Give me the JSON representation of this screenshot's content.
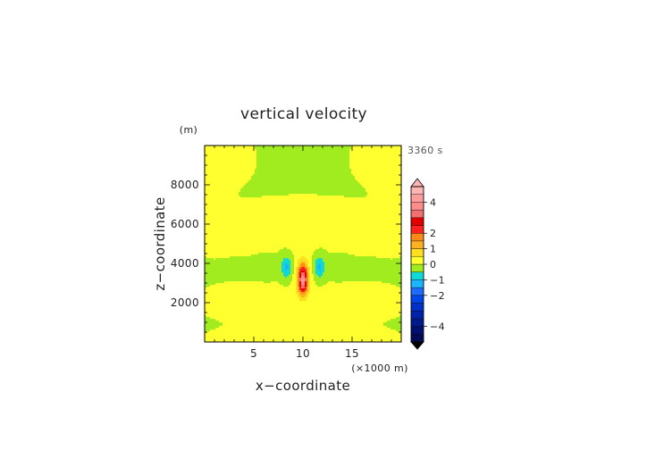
{
  "chart_data": {
    "type": "heatmap",
    "title": "vertical velocity",
    "xlabel": "x−coordinate",
    "ylabel": "z−coordinate",
    "x_unit_label": "(×1000 m)",
    "y_unit_label": "(m)",
    "time_label": "3360 s",
    "xlim": [
      0,
      20
    ],
    "ylim": [
      0,
      10000
    ],
    "x_ticks": [
      5,
      10,
      15
    ],
    "y_ticks": [
      2000,
      4000,
      6000,
      8000
    ],
    "x_tick_labels": [
      "5",
      "10",
      "15"
    ],
    "y_tick_labels": [
      "2000",
      "4000",
      "6000",
      "8000"
    ],
    "contour_levels": [
      -5,
      -4.5,
      -4,
      -3.5,
      -3,
      -2.5,
      -2,
      -1.5,
      -1,
      -0.5,
      0,
      0.5,
      1,
      1.5,
      2,
      2.5,
      3,
      3.5,
      4,
      4.5,
      5
    ],
    "level_colors": [
      "#000a55",
      "#001070",
      "#001a8c",
      "#0022a8",
      "#0030c8",
      "#0046e6",
      "#1e6cff",
      "#1ab4ff",
      "#10d8d8",
      "#a0ec1e",
      "#ffff30",
      "#ffde20",
      "#ffb020",
      "#ff8a18",
      "#ff2020",
      "#e00000",
      "#f27070",
      "#ff8c8c",
      "#ff9c9c",
      "#ffb4b4"
    ],
    "colorbar_labels": [
      {
        "value": 4,
        "text": "4"
      },
      {
        "value": 2,
        "text": "2"
      },
      {
        "value": 1,
        "text": "1"
      },
      {
        "value": 0,
        "text": "0"
      },
      {
        "value": -1,
        "text": "−1"
      },
      {
        "value": -2,
        "text": "−2"
      },
      {
        "value": -4,
        "text": "−4"
      }
    ],
    "grid": false,
    "legend": "colorbar-right"
  }
}
